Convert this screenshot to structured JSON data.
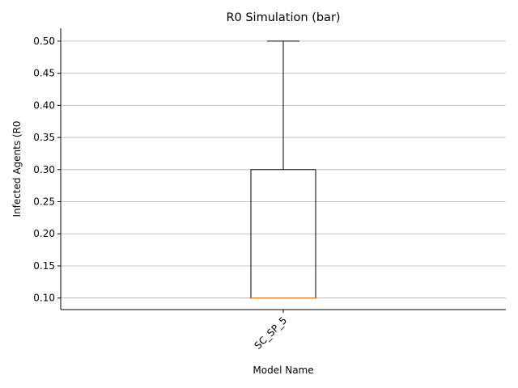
{
  "chart_data": {
    "type": "box",
    "title": "R0 Simulation (bar)",
    "xlabel": "Model Name",
    "ylabel": "Infected Agents (R0",
    "categories": [
      "SC_SP_5"
    ],
    "boxes": [
      {
        "category": "SC_SP_5",
        "whisker_low": 0.1,
        "q1": 0.1,
        "median": 0.1,
        "q3": 0.3,
        "whisker_high": 0.5
      }
    ],
    "ylim": [
      0.082,
      0.52
    ],
    "yticks": [
      0.1,
      0.15,
      0.2,
      0.25,
      0.3,
      0.35,
      0.4,
      0.45,
      0.5
    ],
    "ytick_labels": [
      "0.10",
      "0.15",
      "0.20",
      "0.25",
      "0.30",
      "0.35",
      "0.40",
      "0.45",
      "0.50"
    ],
    "grid": "y-axis only",
    "colors": {
      "box_edge": "#000000",
      "median": "#ff7f0e",
      "grid": "#b0b0b0"
    }
  }
}
